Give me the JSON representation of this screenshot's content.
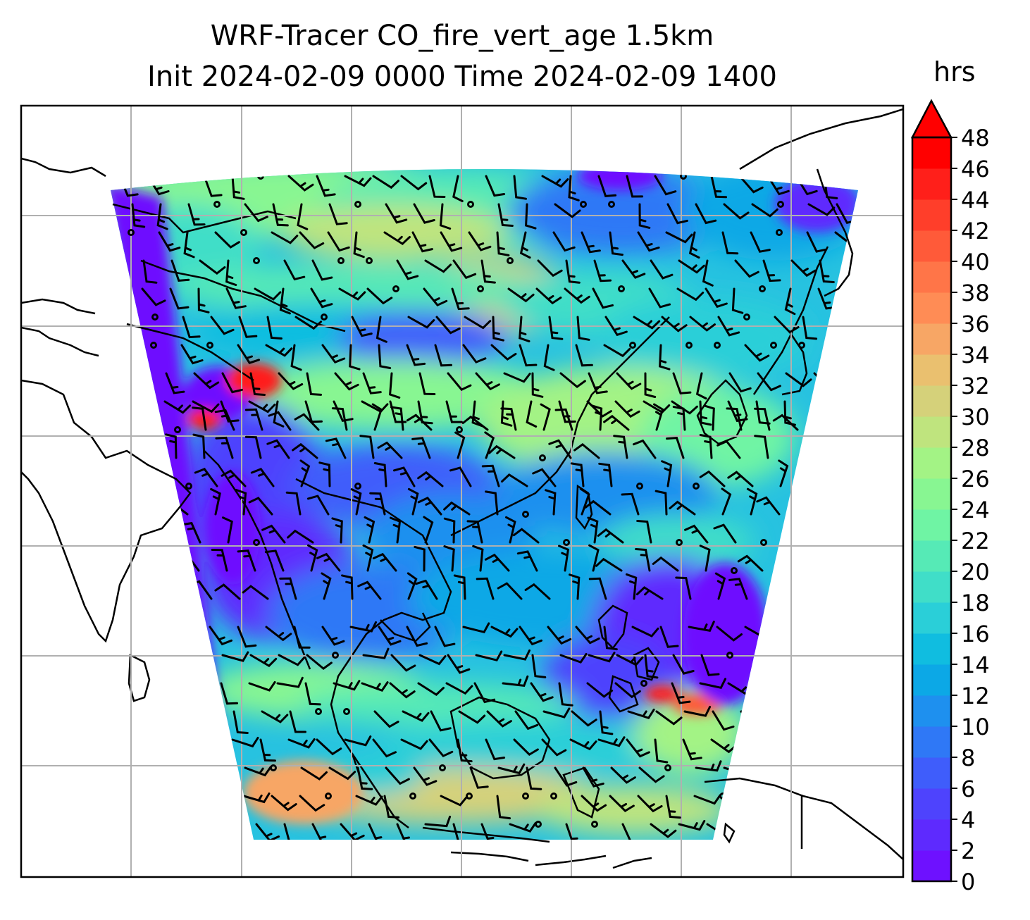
{
  "title_line1": "WRF-Tracer CO_fire_vert_age 1.5km",
  "title_line2": "Init 2024-02-09 0000 Time 2024-02-09 1400",
  "colorbar": {
    "unit": "hrs",
    "extend": "max",
    "min": 0,
    "max": 48,
    "step": 2,
    "ticks": [
      "0",
      "2",
      "4",
      "6",
      "8",
      "10",
      "12",
      "14",
      "16",
      "18",
      "20",
      "22",
      "24",
      "26",
      "28",
      "30",
      "32",
      "34",
      "36",
      "38",
      "40",
      "42",
      "44",
      "46",
      "48"
    ],
    "colors": [
      "#6e11ff",
      "#5e2afe",
      "#4e43fd",
      "#3f5dfb",
      "#2f78f6",
      "#1e90ef",
      "#0ca8e6",
      "#10bde0",
      "#2acfd8",
      "#40dec8",
      "#56eab6",
      "#6ff4a4",
      "#88f692",
      "#a3f385",
      "#bfe47e",
      "#d5d17a",
      "#eac06f",
      "#f7a665",
      "#ff8c55",
      "#ff7548",
      "#ff5a39",
      "#ff3e2a",
      "#ff1f1a",
      "#ff0000"
    ],
    "extend_color": "#ff0000"
  },
  "map": {
    "type": "filled-contour with wind barbs",
    "field": "CO_fire_vert_age",
    "level": "1.5km",
    "gridlines": true,
    "coastlines": true,
    "wind_barbs": true
  }
}
